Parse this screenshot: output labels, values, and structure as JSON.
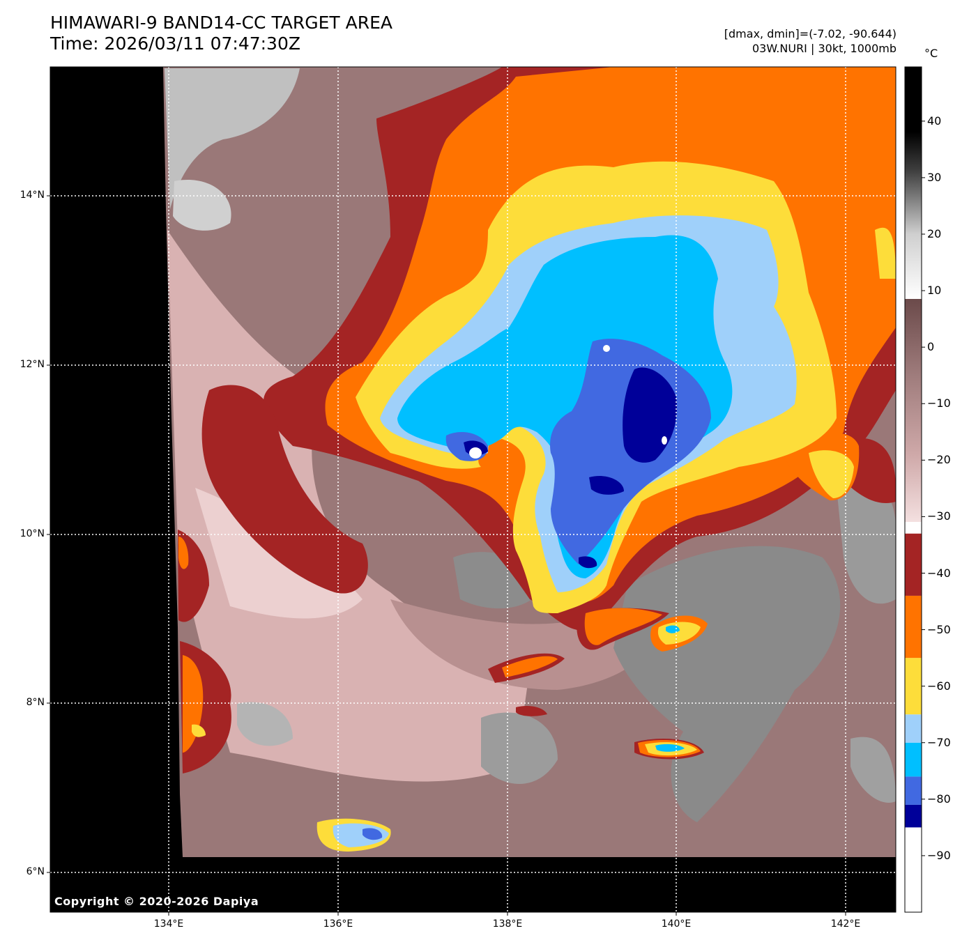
{
  "title": {
    "line1": "HIMAWARI-9 BAND14-CC TARGET AREA",
    "line2": "Time: 2026/03/11 07:47:30Z"
  },
  "meta": {
    "dminmax": "[dmax, dmin]=(-7.02, -90.644)",
    "storm": "03W.NURI | 30kt, 1000mb"
  },
  "colorbar": {
    "unit": "°C",
    "ticks": [
      "40",
      "30",
      "20",
      "10",
      "0",
      "−10",
      "−20",
      "−30",
      "−40",
      "−50",
      "−60",
      "−70",
      "−80",
      "−90"
    ],
    "bands": [
      {
        "from": -100,
        "to": -85,
        "color": "#ffffff"
      },
      {
        "from": -85,
        "to": -81,
        "color": "#000099"
      },
      {
        "from": -81,
        "to": -76,
        "color": "#4169e1"
      },
      {
        "from": -76,
        "to": -70,
        "color": "#00bfff"
      },
      {
        "from": -70,
        "to": -65,
        "color": "#9fd0fa"
      },
      {
        "from": -65,
        "to": -55,
        "color": "#fddd3a"
      },
      {
        "from": -55,
        "to": -44,
        "color": "#ff7300"
      },
      {
        "from": -44,
        "to": -33,
        "color": "#a42424"
      }
    ]
  },
  "axes": {
    "lat_labels": [
      "14°N",
      "12°N",
      "10°N",
      "8°N",
      "6°N"
    ],
    "lon_labels": [
      "134°E",
      "136°E",
      "138°E",
      "140°E",
      "142°E"
    ]
  },
  "colors": {
    "no_data": "#000000",
    "cold_top_white": "#ffffff",
    "deep_blue": "#000099",
    "royal_blue": "#4169e1",
    "sky_blue": "#00bfff",
    "light_blue": "#9fd0fa",
    "yellow": "#fddd3a",
    "orange": "#ff7300",
    "dark_red": "#a42424",
    "warm_pink": "#e8c4c4",
    "mid_brown": "#9a7878",
    "gray_cloud": "#8a8a8a"
  },
  "copyright": "Copyright © 2020-2026 Dapiya"
}
